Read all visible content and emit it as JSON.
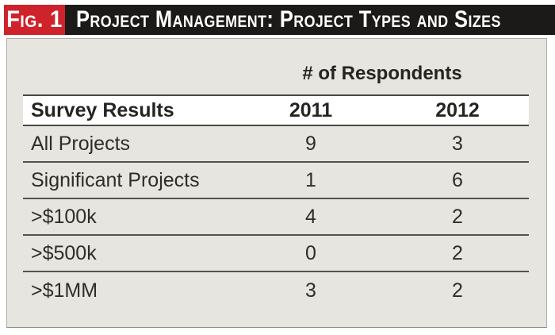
{
  "figure": {
    "label": "Fig. 1",
    "title": "Project Management: Project Types and Sizes"
  },
  "table": {
    "group_header": "# of Respondents",
    "header": {
      "label": "Survey Results",
      "col1": "2011",
      "col2": "2012"
    },
    "rows": [
      {
        "label": "All Projects",
        "v2011": "9",
        "v2012": "3"
      },
      {
        "label": "Significant Projects",
        "v2011": "1",
        "v2012": "6"
      },
      {
        "label": ">$100k",
        "v2011": "4",
        "v2012": "2"
      },
      {
        "label": ">$500k",
        "v2011": "0",
        "v2012": "2"
      },
      {
        "label": ">$1MM",
        "v2011": "3",
        "v2012": "2"
      }
    ]
  },
  "colors": {
    "figure_label_red": "#cf232b",
    "header_bar_black": "#1c1a19",
    "panel_background": "#e6e5e0",
    "rule_line": "#55534e",
    "text": "#2f2d2a"
  },
  "chart_data": {
    "type": "table",
    "title": "Project Management: Project Types and Sizes",
    "figure_label": "Fig. 1",
    "group_header": "# of Respondents",
    "row_header": "Survey Results",
    "categories": [
      "All Projects",
      "Significant Projects",
      ">$100k",
      ">$500k",
      ">$1MM"
    ],
    "series": [
      {
        "name": "2011",
        "values": [
          9,
          1,
          4,
          0,
          3
        ]
      },
      {
        "name": "2012",
        "values": [
          3,
          6,
          2,
          2,
          2
        ]
      }
    ],
    "legend_position": "column headers",
    "grid": "horizontal rules between rows"
  }
}
